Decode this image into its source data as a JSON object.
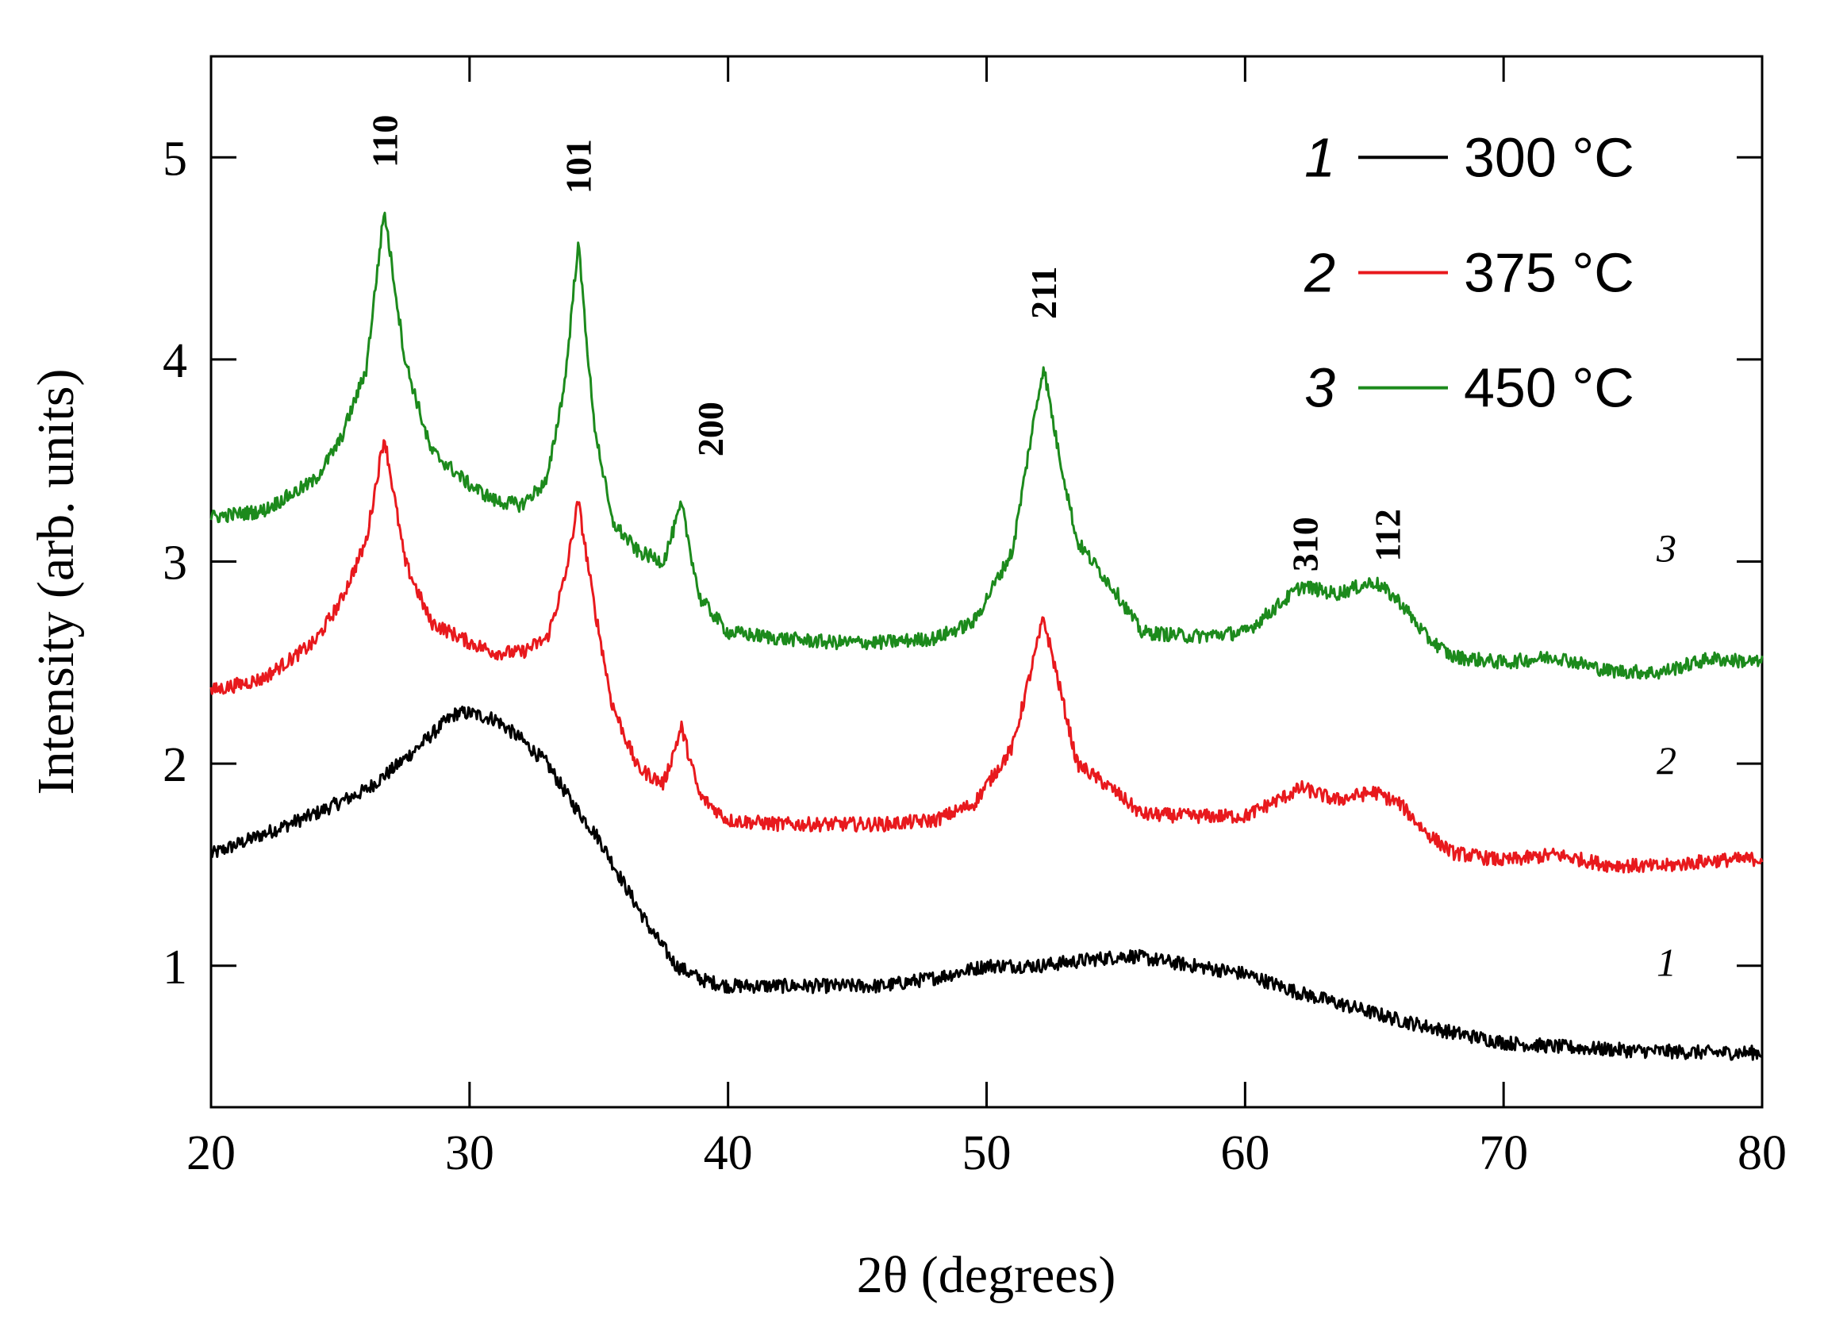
{
  "chart_data": {
    "type": "line",
    "xlabel": "2θ (degrees)",
    "ylabel": "Intensity (arb. units)",
    "xlim": [
      20,
      80
    ],
    "ylim": [
      0.3,
      5.5
    ],
    "x_ticks": [
      20,
      30,
      40,
      50,
      60,
      70,
      80
    ],
    "x_tick_labels": [
      "20",
      "30",
      "40",
      "50",
      "60",
      "70",
      "80"
    ],
    "y_ticks": [
      1,
      2,
      3,
      4,
      5
    ],
    "y_tick_labels": [
      "1",
      "2",
      "3",
      "4",
      "5"
    ],
    "legend_position": "top-right",
    "series": [
      {
        "id": "1",
        "number": "1",
        "name": "300 °C",
        "color": "#000000",
        "x": [
          20,
          22,
          24,
          26,
          27,
          28,
          29,
          29.5,
          30,
          31,
          32,
          33,
          34,
          35,
          36,
          37,
          38,
          39,
          40,
          42,
          44,
          46,
          48,
          50,
          52,
          54,
          55.5,
          57,
          58,
          60,
          62,
          64,
          66,
          68,
          70,
          72,
          75,
          78,
          80
        ],
        "y": [
          1.55,
          1.65,
          1.75,
          1.87,
          1.97,
          2.08,
          2.2,
          2.25,
          2.25,
          2.22,
          2.12,
          2.0,
          1.8,
          1.63,
          1.4,
          1.18,
          1.0,
          0.93,
          0.9,
          0.9,
          0.9,
          0.9,
          0.94,
          1.0,
          1.0,
          1.03,
          1.05,
          1.02,
          1.0,
          0.96,
          0.87,
          0.8,
          0.73,
          0.67,
          0.62,
          0.6,
          0.58,
          0.57,
          0.57
        ]
      },
      {
        "id": "2",
        "number": "2",
        "name": "375 °C",
        "color": "#e8191d",
        "x": [
          20,
          22,
          24,
          25,
          26,
          26.7,
          27.5,
          28.5,
          30,
          31,
          32,
          33,
          33.7,
          34.2,
          34.8,
          35.5,
          36.5,
          37.5,
          38.2,
          38.9,
          40,
          42,
          44,
          46,
          48,
          49.5,
          51,
          51.7,
          52.2,
          52.7,
          53.5,
          55,
          56,
          58,
          60,
          62.2,
          63.5,
          65,
          66,
          67,
          68,
          70,
          72,
          74,
          76,
          78,
          80
        ],
        "y": [
          2.36,
          2.42,
          2.6,
          2.8,
          3.1,
          3.62,
          3.0,
          2.7,
          2.6,
          2.55,
          2.55,
          2.62,
          2.92,
          3.3,
          2.8,
          2.3,
          1.98,
          1.9,
          2.18,
          1.84,
          1.72,
          1.7,
          1.7,
          1.7,
          1.72,
          1.8,
          2.08,
          2.45,
          2.72,
          2.45,
          2.0,
          1.86,
          1.75,
          1.74,
          1.74,
          1.88,
          1.82,
          1.86,
          1.8,
          1.66,
          1.56,
          1.52,
          1.55,
          1.5,
          1.49,
          1.52,
          1.53
        ]
      },
      {
        "id": "3",
        "number": "3",
        "name": "450 °C",
        "color": "#1c8a1c",
        "x": [
          20,
          22,
          24,
          25,
          26,
          26.7,
          27.5,
          28.5,
          30,
          31,
          32,
          33,
          33.7,
          34.2,
          34.8,
          35.5,
          36.5,
          37.5,
          38.2,
          38.9,
          40,
          42,
          44,
          46,
          48,
          49.5,
          51,
          51.7,
          52.2,
          52.7,
          53.5,
          55,
          56,
          58,
          60,
          62.2,
          63.5,
          65,
          66,
          67,
          68,
          70,
          72,
          74,
          76,
          78,
          80
        ],
        "y": [
          3.22,
          3.25,
          3.4,
          3.6,
          3.95,
          4.74,
          4.0,
          3.55,
          3.38,
          3.3,
          3.28,
          3.4,
          3.9,
          4.58,
          3.7,
          3.2,
          3.05,
          3.0,
          3.28,
          2.82,
          2.65,
          2.62,
          2.6,
          2.6,
          2.62,
          2.7,
          3.05,
          3.6,
          3.97,
          3.6,
          3.1,
          2.85,
          2.65,
          2.63,
          2.65,
          2.88,
          2.84,
          2.9,
          2.8,
          2.63,
          2.53,
          2.5,
          2.53,
          2.46,
          2.45,
          2.52,
          2.5
        ]
      }
    ],
    "peak_labels": [
      {
        "text": "110",
        "x": 26.7,
        "y": 4.95
      },
      {
        "text": "101",
        "x": 34.2,
        "y": 4.82
      },
      {
        "text": "200",
        "x": 39.3,
        "y": 3.52
      },
      {
        "text": "211",
        "x": 52.2,
        "y": 4.2
      },
      {
        "text": "310",
        "x": 62.3,
        "y": 2.95
      },
      {
        "text": "112",
        "x": 65.5,
        "y": 3.0
      }
    ],
    "curve_labels": [
      {
        "text": "3",
        "x": 76.3,
        "y": 3.0
      },
      {
        "text": "2",
        "x": 76.3,
        "y": 1.95
      },
      {
        "text": "1",
        "x": 76.3,
        "y": 0.95
      }
    ]
  }
}
